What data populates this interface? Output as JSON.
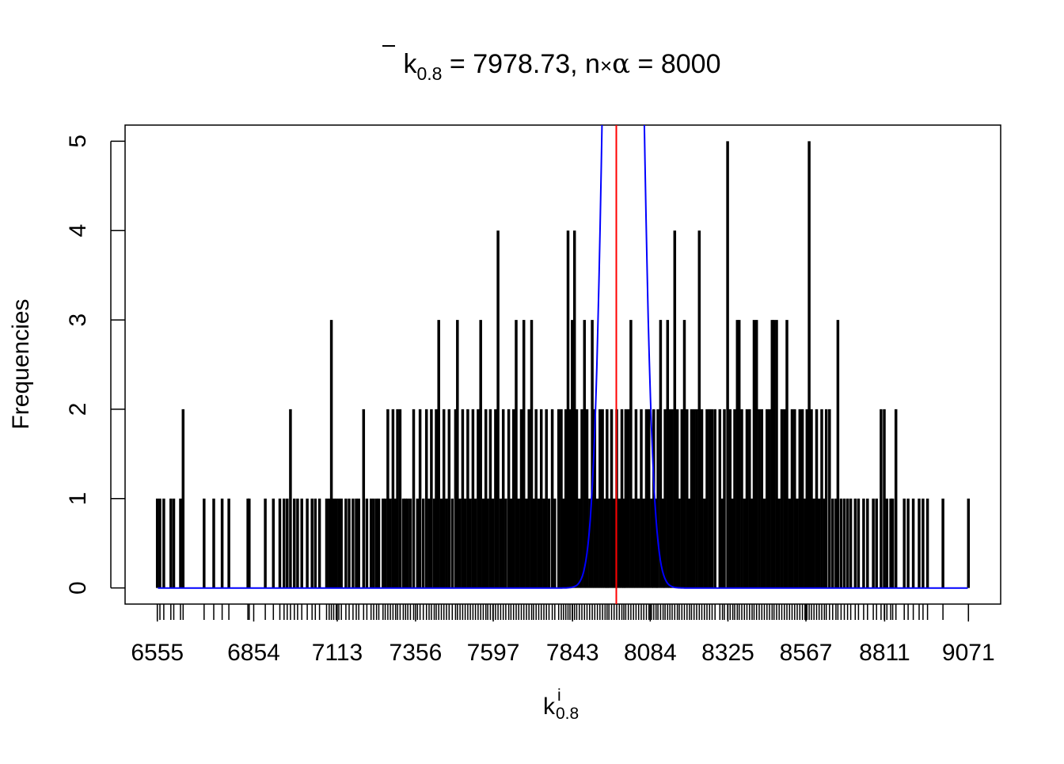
{
  "chart_data": {
    "type": "bar",
    "title": {
      "k": "k",
      "sub": "0.8",
      "rest": " = 7978.73, n",
      "times": "×",
      "alpha": "α",
      "tail": " = 8000"
    },
    "xlabel": {
      "base": "k",
      "sup": "i",
      "sub": "0.8"
    },
    "ylabel": "Frequencies",
    "xlim": [
      6455,
      9171
    ],
    "ylim": [
      -0.18,
      5.18
    ],
    "x_ticks": [
      6555,
      6854,
      7113,
      7356,
      7597,
      7843,
      8084,
      8325,
      8567,
      8811,
      9071
    ],
    "y_ticks": [
      0,
      1,
      2,
      3,
      4,
      5
    ],
    "mean_line": 7978.73,
    "normal_curve": {
      "mean": 8000,
      "sd": 40,
      "scale": 500
    },
    "series": [
      {
        "values": [
          [
            6555,
            1
          ],
          [
            6563,
            1
          ],
          [
            6575,
            1
          ],
          [
            6597,
            1
          ],
          [
            6606,
            1
          ],
          [
            6627,
            1
          ],
          [
            6635,
            2
          ],
          [
            6700,
            1
          ],
          [
            6730,
            1
          ],
          [
            6756,
            1
          ],
          [
            6777,
            1
          ],
          [
            6836,
            1
          ],
          [
            6840,
            1
          ],
          [
            6890,
            1
          ],
          [
            6915,
            1
          ],
          [
            6935,
            1
          ],
          [
            6948,
            1
          ],
          [
            6958,
            1
          ],
          [
            6968,
            2
          ],
          [
            6980,
            1
          ],
          [
            6990,
            1
          ],
          [
            7003,
            1
          ],
          [
            7020,
            1
          ],
          [
            7035,
            1
          ],
          [
            7045,
            1
          ],
          [
            7058,
            1
          ],
          [
            7080,
            1
          ],
          [
            7088,
            1
          ],
          [
            7095,
            3
          ],
          [
            7102,
            1
          ],
          [
            7110,
            1
          ],
          [
            7118,
            1
          ],
          [
            7126,
            1
          ],
          [
            7140,
            1
          ],
          [
            7150,
            1
          ],
          [
            7162,
            1
          ],
          [
            7172,
            1
          ],
          [
            7180,
            1
          ],
          [
            7195,
            2
          ],
          [
            7205,
            1
          ],
          [
            7218,
            1
          ],
          [
            7226,
            1
          ],
          [
            7235,
            1
          ],
          [
            7242,
            1
          ],
          [
            7255,
            1
          ],
          [
            7262,
            1
          ],
          [
            7270,
            2
          ],
          [
            7278,
            1
          ],
          [
            7286,
            2
          ],
          [
            7294,
            1
          ],
          [
            7300,
            2
          ],
          [
            7308,
            2
          ],
          [
            7318,
            1
          ],
          [
            7325,
            1
          ],
          [
            7332,
            1
          ],
          [
            7340,
            1
          ],
          [
            7350,
            2
          ],
          [
            7362,
            1
          ],
          [
            7370,
            2
          ],
          [
            7380,
            1
          ],
          [
            7390,
            2
          ],
          [
            7398,
            1
          ],
          [
            7405,
            2
          ],
          [
            7414,
            1
          ],
          [
            7420,
            2
          ],
          [
            7428,
            3
          ],
          [
            7436,
            1
          ],
          [
            7444,
            2
          ],
          [
            7452,
            1
          ],
          [
            7460,
            2
          ],
          [
            7470,
            1
          ],
          [
            7480,
            2
          ],
          [
            7486,
            3
          ],
          [
            7494,
            1
          ],
          [
            7502,
            2
          ],
          [
            7510,
            1
          ],
          [
            7518,
            2
          ],
          [
            7526,
            1
          ],
          [
            7534,
            2
          ],
          [
            7542,
            1
          ],
          [
            7550,
            2
          ],
          [
            7558,
            3
          ],
          [
            7566,
            1
          ],
          [
            7574,
            2
          ],
          [
            7580,
            1
          ],
          [
            7588,
            2
          ],
          [
            7596,
            1
          ],
          [
            7604,
            2
          ],
          [
            7612,
            4
          ],
          [
            7620,
            1
          ],
          [
            7628,
            2
          ],
          [
            7636,
            1
          ],
          [
            7645,
            2
          ],
          [
            7652,
            1
          ],
          [
            7660,
            2
          ],
          [
            7668,
            3
          ],
          [
            7676,
            1
          ],
          [
            7684,
            2
          ],
          [
            7692,
            3
          ],
          [
            7700,
            1
          ],
          [
            7708,
            2
          ],
          [
            7716,
            3
          ],
          [
            7722,
            1
          ],
          [
            7730,
            2
          ],
          [
            7738,
            1
          ],
          [
            7746,
            2
          ],
          [
            7754,
            1
          ],
          [
            7762,
            2
          ],
          [
            7770,
            1
          ],
          [
            7780,
            2
          ],
          [
            7788,
            1
          ],
          [
            7800,
            2
          ],
          [
            7808,
            2
          ],
          [
            7815,
            1
          ],
          [
            7822,
            2
          ],
          [
            7829,
            4
          ],
          [
            7835,
            2
          ],
          [
            7842,
            3
          ],
          [
            7849,
            4
          ],
          [
            7856,
            2
          ],
          [
            7864,
            1
          ],
          [
            7872,
            2
          ],
          [
            7880,
            3
          ],
          [
            7888,
            2
          ],
          [
            7896,
            1
          ],
          [
            7904,
            3
          ],
          [
            7912,
            2
          ],
          [
            7920,
            1
          ],
          [
            7928,
            2
          ],
          [
            7936,
            2
          ],
          [
            7944,
            1
          ],
          [
            7950,
            2
          ],
          [
            7956,
            1
          ],
          [
            7964,
            2
          ],
          [
            7972,
            1
          ],
          [
            7980,
            2
          ],
          [
            7988,
            1
          ],
          [
            7996,
            2
          ],
          [
            8002,
            1
          ],
          [
            8008,
            2
          ],
          [
            8016,
            2
          ],
          [
            8024,
            3
          ],
          [
            8032,
            1
          ],
          [
            8040,
            2
          ],
          [
            8048,
            1
          ],
          [
            8056,
            2
          ],
          [
            8064,
            1
          ],
          [
            8072,
            2
          ],
          [
            8080,
            2
          ],
          [
            8088,
            1
          ],
          [
            8095,
            2
          ],
          [
            8102,
            1
          ],
          [
            8108,
            2
          ],
          [
            8116,
            3
          ],
          [
            8124,
            1
          ],
          [
            8130,
            2
          ],
          [
            8138,
            3
          ],
          [
            8145,
            2
          ],
          [
            8152,
            2
          ],
          [
            8160,
            4
          ],
          [
            8168,
            2
          ],
          [
            8174,
            1
          ],
          [
            8182,
            2
          ],
          [
            8190,
            3
          ],
          [
            8198,
            2
          ],
          [
            8206,
            1
          ],
          [
            8212,
            2
          ],
          [
            8220,
            2
          ],
          [
            8228,
            2
          ],
          [
            8236,
            4
          ],
          [
            8244,
            2
          ],
          [
            8252,
            1
          ],
          [
            8260,
            2
          ],
          [
            8268,
            2
          ],
          [
            8276,
            2
          ],
          [
            8285,
            2
          ],
          [
            8300,
            2
          ],
          [
            8308,
            1
          ],
          [
            8314,
            2
          ],
          [
            8324,
            5
          ],
          [
            8332,
            2
          ],
          [
            8340,
            1
          ],
          [
            8346,
            2
          ],
          [
            8354,
            3
          ],
          [
            8360,
            3
          ],
          [
            8368,
            2
          ],
          [
            8376,
            1
          ],
          [
            8384,
            2
          ],
          [
            8392,
            2
          ],
          [
            8400,
            1
          ],
          [
            8406,
            3
          ],
          [
            8414,
            3
          ],
          [
            8422,
            2
          ],
          [
            8430,
            2
          ],
          [
            8438,
            1
          ],
          [
            8446,
            2
          ],
          [
            8454,
            2
          ],
          [
            8462,
            3
          ],
          [
            8468,
            3
          ],
          [
            8476,
            3
          ],
          [
            8484,
            1
          ],
          [
            8492,
            2
          ],
          [
            8500,
            2
          ],
          [
            8508,
            3
          ],
          [
            8516,
            1
          ],
          [
            8524,
            2
          ],
          [
            8532,
            2
          ],
          [
            8540,
            1
          ],
          [
            8548,
            2
          ],
          [
            8556,
            2
          ],
          [
            8564,
            1
          ],
          [
            8570,
            2
          ],
          [
            8577,
            5
          ],
          [
            8584,
            2
          ],
          [
            8592,
            1
          ],
          [
            8600,
            2
          ],
          [
            8608,
            1
          ],
          [
            8616,
            2
          ],
          [
            8624,
            1
          ],
          [
            8630,
            2
          ],
          [
            8640,
            2
          ],
          [
            8650,
            1
          ],
          [
            8660,
            1
          ],
          [
            8666,
            3
          ],
          [
            8676,
            1
          ],
          [
            8686,
            1
          ],
          [
            8696,
            1
          ],
          [
            8706,
            1
          ],
          [
            8720,
            1
          ],
          [
            8730,
            1
          ],
          [
            8746,
            1
          ],
          [
            8758,
            1
          ],
          [
            8776,
            1
          ],
          [
            8786,
            1
          ],
          [
            8800,
            2
          ],
          [
            8810,
            2
          ],
          [
            8818,
            1
          ],
          [
            8830,
            1
          ],
          [
            8836,
            1
          ],
          [
            8846,
            2
          ],
          [
            8872,
            1
          ],
          [
            8884,
            1
          ],
          [
            8900,
            1
          ],
          [
            8918,
            1
          ],
          [
            8930,
            1
          ],
          [
            8944,
            1
          ],
          [
            8992,
            1
          ],
          [
            9071,
            1
          ]
        ]
      }
    ]
  }
}
